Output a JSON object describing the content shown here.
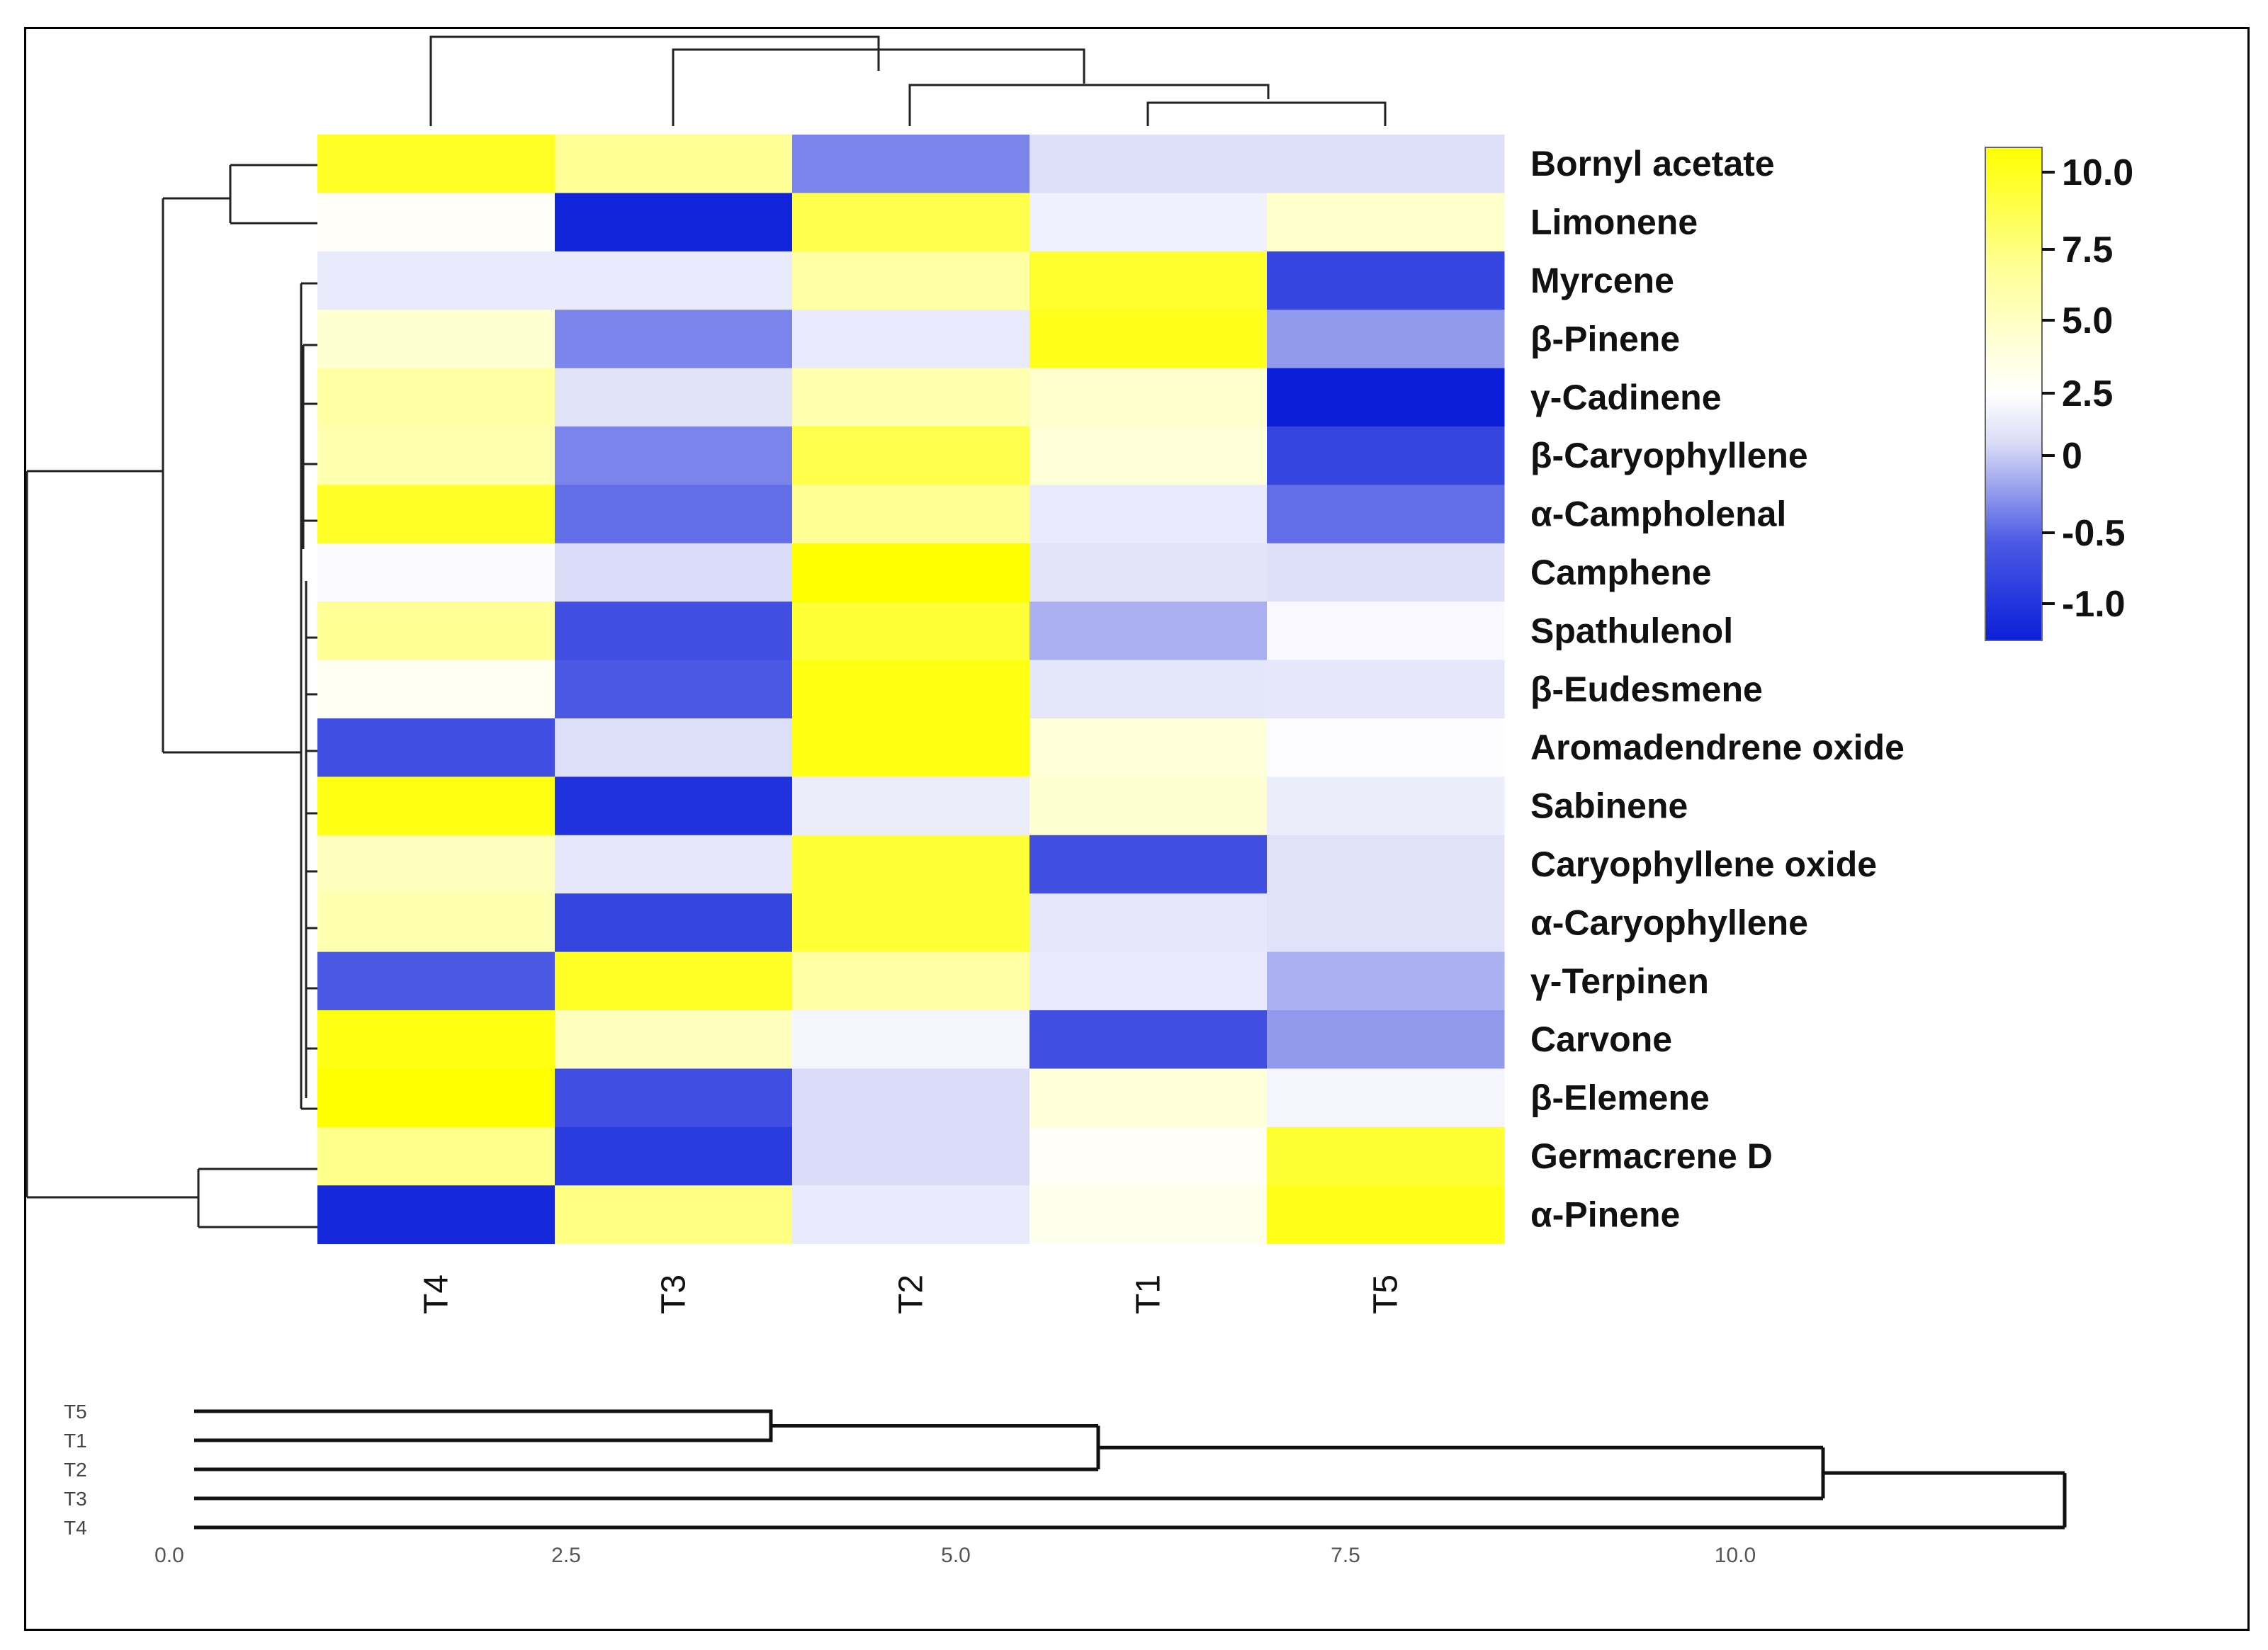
{
  "chart_data": [
    {
      "type": "heatmap",
      "title": "",
      "columns": [
        "T4",
        "T3",
        "T2",
        "T1",
        "T5"
      ],
      "rows": [
        "Bornyl acetate",
        "Limonene",
        "Myrcene",
        "β-Pinene",
        "γ-Cadinene",
        "β-Caryophyllene",
        "α-Campholenal",
        "Camphene",
        "Spathulenol",
        "β-Eudesmene",
        "Aromadendrene oxide",
        "Sabinene",
        "Caryophyllene oxide",
        "α-Caryophyllene",
        "γ-Terpinen",
        "Carvone",
        "β-Elemene",
        "Germacrene D",
        "α-Pinene"
      ],
      "values": [
        [
          9.5,
          6.5,
          -0.4,
          0.3,
          0.2
        ],
        [
          2.8,
          -1.15,
          8.5,
          1.5,
          4.5
        ],
        [
          1.0,
          1.0,
          6.0,
          9.3,
          -0.8
        ],
        [
          4.2,
          -0.4,
          1.0,
          9.8,
          -0.3
        ],
        [
          6.0,
          0.5,
          5.5,
          4.5,
          -1.2
        ],
        [
          5.5,
          -0.4,
          8.5,
          4.0,
          -0.8
        ],
        [
          9.5,
          -0.5,
          6.5,
          1.0,
          -0.5
        ],
        [
          2.2,
          0.1,
          10.5,
          0.6,
          0.3
        ],
        [
          6.5,
          -0.7,
          9.0,
          -0.2,
          2.0
        ],
        [
          3.0,
          -0.6,
          10.0,
          0.7,
          0.8
        ],
        [
          -0.7,
          0.2,
          10.0,
          4.0,
          2.3
        ],
        [
          10.0,
          -1.0,
          1.2,
          4.2,
          1.2
        ],
        [
          5.0,
          0.8,
          9.0,
          -0.7,
          0.4
        ],
        [
          5.5,
          -0.8,
          9.0,
          0.8,
          0.4
        ],
        [
          -0.6,
          9.5,
          6.0,
          1.0,
          -0.2
        ],
        [
          10.0,
          5.0,
          1.8,
          -0.7,
          -0.3
        ],
        [
          10.5,
          -0.7,
          0.1,
          4.0,
          1.8
        ],
        [
          6.8,
          -0.9,
          0.1,
          2.8,
          9.2
        ],
        [
          -1.1,
          7.0,
          1.0,
          3.2,
          9.8
        ]
      ],
      "colorbar": {
        "ticks": [
          "10.0",
          "7.5",
          "5.0",
          "2.5",
          "0",
          "-0.5",
          "-1.0"
        ],
        "low_color": "#0b1fd9",
        "mid_color": "#ffffff",
        "high_color": "#ffff00"
      }
    },
    {
      "type": "dendrogram",
      "orientation": "horizontal",
      "leaves": [
        "T5",
        "T1",
        "T2",
        "T3",
        "T4"
      ],
      "merges": [
        {
          "items": [
            "T5",
            "T1"
          ],
          "height": 3.7
        },
        {
          "items": [
            "T5,T1",
            "T2"
          ],
          "height": 5.8
        },
        {
          "items": [
            "T5,T1,T2",
            "T3"
          ],
          "height": 10.45
        },
        {
          "items": [
            "T5,T1,T2,T3",
            "T4"
          ],
          "height": 12.0
        }
      ],
      "xticks": [
        "0.0",
        "2.5",
        "5.0",
        "7.5",
        "10.0"
      ],
      "xlim": [
        0,
        12
      ]
    }
  ]
}
